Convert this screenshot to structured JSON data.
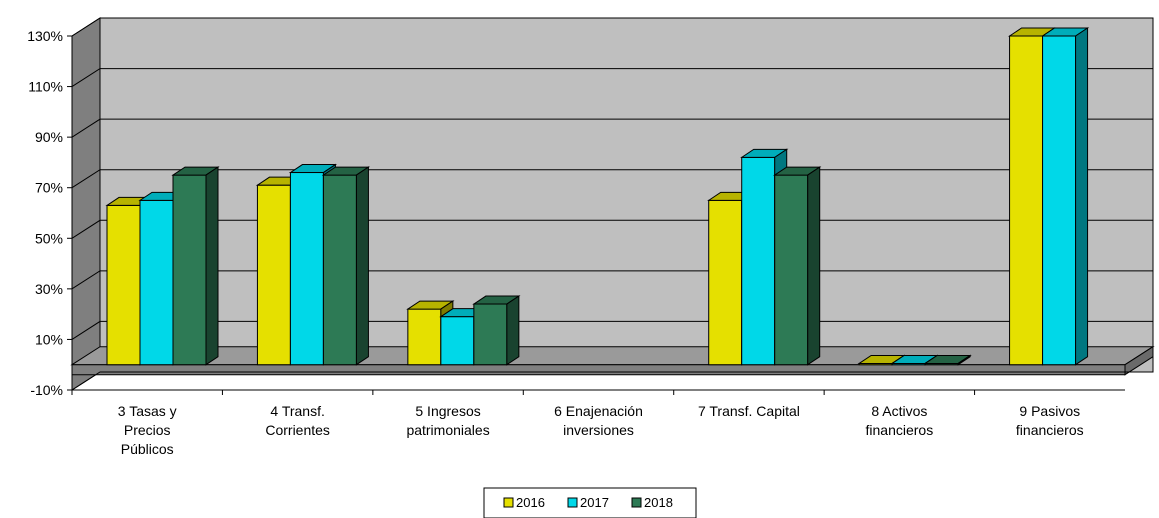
{
  "chart_data": {
    "type": "bar",
    "title": "",
    "xlabel": "",
    "ylabel": "",
    "ylim": [
      -10,
      130
    ],
    "yticks": [
      "-10%",
      "10%",
      "30%",
      "50%",
      "70%",
      "90%",
      "110%",
      "130%"
    ],
    "categories": [
      [
        "3 Tasas y",
        "Precios",
        "Públicos"
      ],
      [
        "4 Transf.",
        "Corrientes"
      ],
      [
        "5 Ingresos",
        "patrimoniales"
      ],
      [
        "6 Enajenación",
        "inversiones"
      ],
      [
        "7 Transf. Capital"
      ],
      [
        "8 Activos",
        "financieros"
      ],
      [
        "9 Pasivos",
        "financieros"
      ]
    ],
    "series": [
      {
        "name": "2016",
        "color": "#e5e000",
        "values": [
          63,
          71,
          22,
          0,
          65,
          0.5,
          130
        ]
      },
      {
        "name": "2017",
        "color": "#00d8e8",
        "values": [
          65,
          76,
          19,
          0,
          82,
          0.5,
          130
        ]
      },
      {
        "name": "2018",
        "color": "#2d7a55",
        "values": [
          75,
          75,
          24,
          0,
          75,
          0.5,
          null
        ]
      }
    ],
    "legend_position": "bottom",
    "grid": true,
    "style": "3d"
  }
}
